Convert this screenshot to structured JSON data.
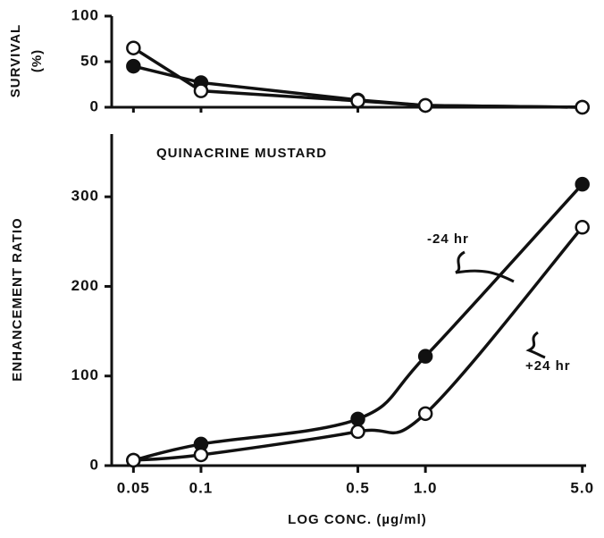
{
  "chart_data": [
    {
      "type": "line",
      "ylabel": [
        "SURVIVAL",
        "(%)"
      ],
      "x": [
        0.05,
        0.1,
        0.5,
        1,
        5
      ],
      "xlim": [
        0.04,
        5.2
      ],
      "xscale": "log",
      "ylim": [
        0,
        100
      ],
      "yticks": [
        0,
        50,
        100
      ],
      "series": [
        {
          "marker": "filled",
          "color": "#111",
          "values": [
            45,
            27,
            8,
            2,
            0
          ]
        },
        {
          "marker": "open",
          "color": "#111",
          "values": [
            65,
            18,
            7,
            2,
            0
          ]
        }
      ]
    },
    {
      "type": "line",
      "title": "QUINACRINE MUSTARD",
      "ylabel": "ENHANCEMENT RATIO",
      "xlabel": "LOG CONC. (µg/ml)",
      "x": [
        0.05,
        0.1,
        0.5,
        1,
        5
      ],
      "xlim": [
        0.04,
        5.2
      ],
      "xscale": "log",
      "xticks": [
        0.05,
        0.1,
        0.5,
        {
          "value": 1,
          "label": "1.0"
        },
        {
          "value": 5,
          "label": "5.0"
        }
      ],
      "ylim": [
        0,
        370
      ],
      "yticks": [
        0,
        100,
        200,
        300
      ],
      "series": [
        {
          "name": "-24 hr",
          "marker": "filled",
          "color": "#111",
          "values": [
            6,
            24,
            52,
            122,
            314
          ]
        },
        {
          "name": "+24 hr",
          "marker": "open",
          "color": "#111",
          "values": [
            6,
            12,
            38,
            58,
            266
          ]
        }
      ]
    }
  ]
}
